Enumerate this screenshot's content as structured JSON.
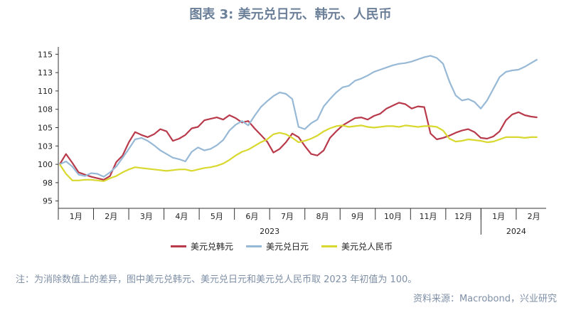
{
  "chart_data": {
    "type": "line",
    "title": "图表 3: 美元兑日元、韩元、人民币",
    "y_ticks": [
      "95",
      "98",
      "100",
      "103",
      "105",
      "108",
      "110",
      "113",
      "115"
    ],
    "y_tick_values": [
      95,
      97.5,
      100,
      102.5,
      105,
      107.5,
      110,
      112.5,
      115
    ],
    "ylim": [
      94,
      116
    ],
    "x_month_labels": [
      "1月",
      "2月",
      "3月",
      "4月",
      "5月",
      "6月",
      "7月",
      "8月",
      "9月",
      "10月",
      "11月",
      "12月",
      "1月",
      "2月"
    ],
    "x_year_labels": [
      "2023",
      "2024"
    ],
    "grid": false,
    "legend_placement": "bottom",
    "series": [
      {
        "name": "美元兑韩元",
        "color": "#b83a4b",
        "values": [
          100.0,
          101.4,
          100.2,
          98.9,
          98.6,
          98.3,
          98.1,
          97.9,
          98.4,
          100.3,
          101.2,
          103.0,
          104.4,
          104.0,
          103.7,
          104.1,
          104.8,
          104.5,
          103.2,
          103.5,
          104.0,
          104.9,
          105.1,
          106.0,
          106.2,
          106.4,
          106.1,
          106.7,
          106.3,
          105.7,
          105.9,
          104.9,
          104.0,
          103.1,
          101.6,
          102.1,
          103.0,
          104.2,
          103.7,
          102.5,
          101.4,
          101.2,
          101.9,
          103.6,
          104.5,
          105.3,
          105.8,
          106.3,
          106.4,
          106.1,
          106.6,
          106.9,
          107.6,
          108.0,
          108.4,
          108.2,
          107.6,
          107.9,
          107.8,
          104.2,
          103.4,
          103.6,
          103.9,
          104.3,
          104.6,
          104.8,
          104.4,
          103.6,
          103.5,
          103.8,
          104.5,
          106.0,
          106.8,
          107.1,
          106.7,
          106.5,
          106.4
        ]
      },
      {
        "name": "美元兑日元",
        "color": "#97b9d6",
        "values": [
          100.0,
          100.4,
          99.7,
          98.6,
          98.4,
          98.8,
          98.7,
          98.3,
          98.9,
          99.7,
          100.9,
          102.1,
          103.4,
          103.6,
          103.2,
          102.6,
          101.9,
          101.4,
          100.9,
          100.7,
          100.4,
          101.7,
          102.3,
          101.9,
          102.1,
          102.6,
          103.3,
          104.6,
          105.4,
          105.9,
          105.3,
          106.6,
          107.8,
          108.6,
          109.3,
          109.8,
          109.6,
          108.9,
          105.1,
          104.8,
          105.6,
          106.1,
          107.9,
          108.9,
          109.8,
          110.5,
          110.7,
          111.4,
          111.7,
          112.1,
          112.6,
          112.9,
          113.2,
          113.5,
          113.7,
          113.8,
          114.0,
          114.3,
          114.6,
          114.8,
          114.5,
          113.7,
          111.3,
          109.4,
          108.7,
          108.9,
          108.5,
          107.6,
          108.7,
          110.3,
          111.9,
          112.6,
          112.8,
          112.9,
          113.3,
          113.8,
          114.3
        ]
      },
      {
        "name": "美元兑人民币",
        "color": "#d8d82e",
        "values": [
          100.0,
          98.7,
          97.8,
          97.8,
          97.9,
          97.9,
          97.8,
          97.7,
          98.1,
          98.4,
          98.9,
          99.3,
          99.6,
          99.5,
          99.4,
          99.3,
          99.2,
          99.1,
          99.2,
          99.3,
          99.3,
          99.1,
          99.3,
          99.5,
          99.6,
          99.8,
          100.1,
          100.6,
          101.2,
          101.7,
          102.0,
          102.5,
          103.0,
          103.4,
          104.1,
          104.3,
          104.1,
          103.6,
          103.0,
          103.2,
          103.5,
          103.9,
          104.5,
          104.9,
          105.2,
          105.3,
          105.1,
          105.2,
          105.3,
          105.1,
          105.0,
          105.1,
          105.2,
          105.2,
          105.1,
          105.3,
          105.2,
          105.1,
          105.2,
          105.2,
          105.1,
          104.6,
          103.5,
          103.1,
          103.2,
          103.4,
          103.3,
          103.2,
          103.0,
          103.1,
          103.4,
          103.7,
          103.7,
          103.7,
          103.6,
          103.7,
          103.7
        ]
      }
    ]
  },
  "note": "注：为消除数值上的差异，图中美元兑韩元、美元兑日元和美元兑人民币取 2023 年初值为 100。",
  "source": "资料来源：Macrobond，兴业研究"
}
